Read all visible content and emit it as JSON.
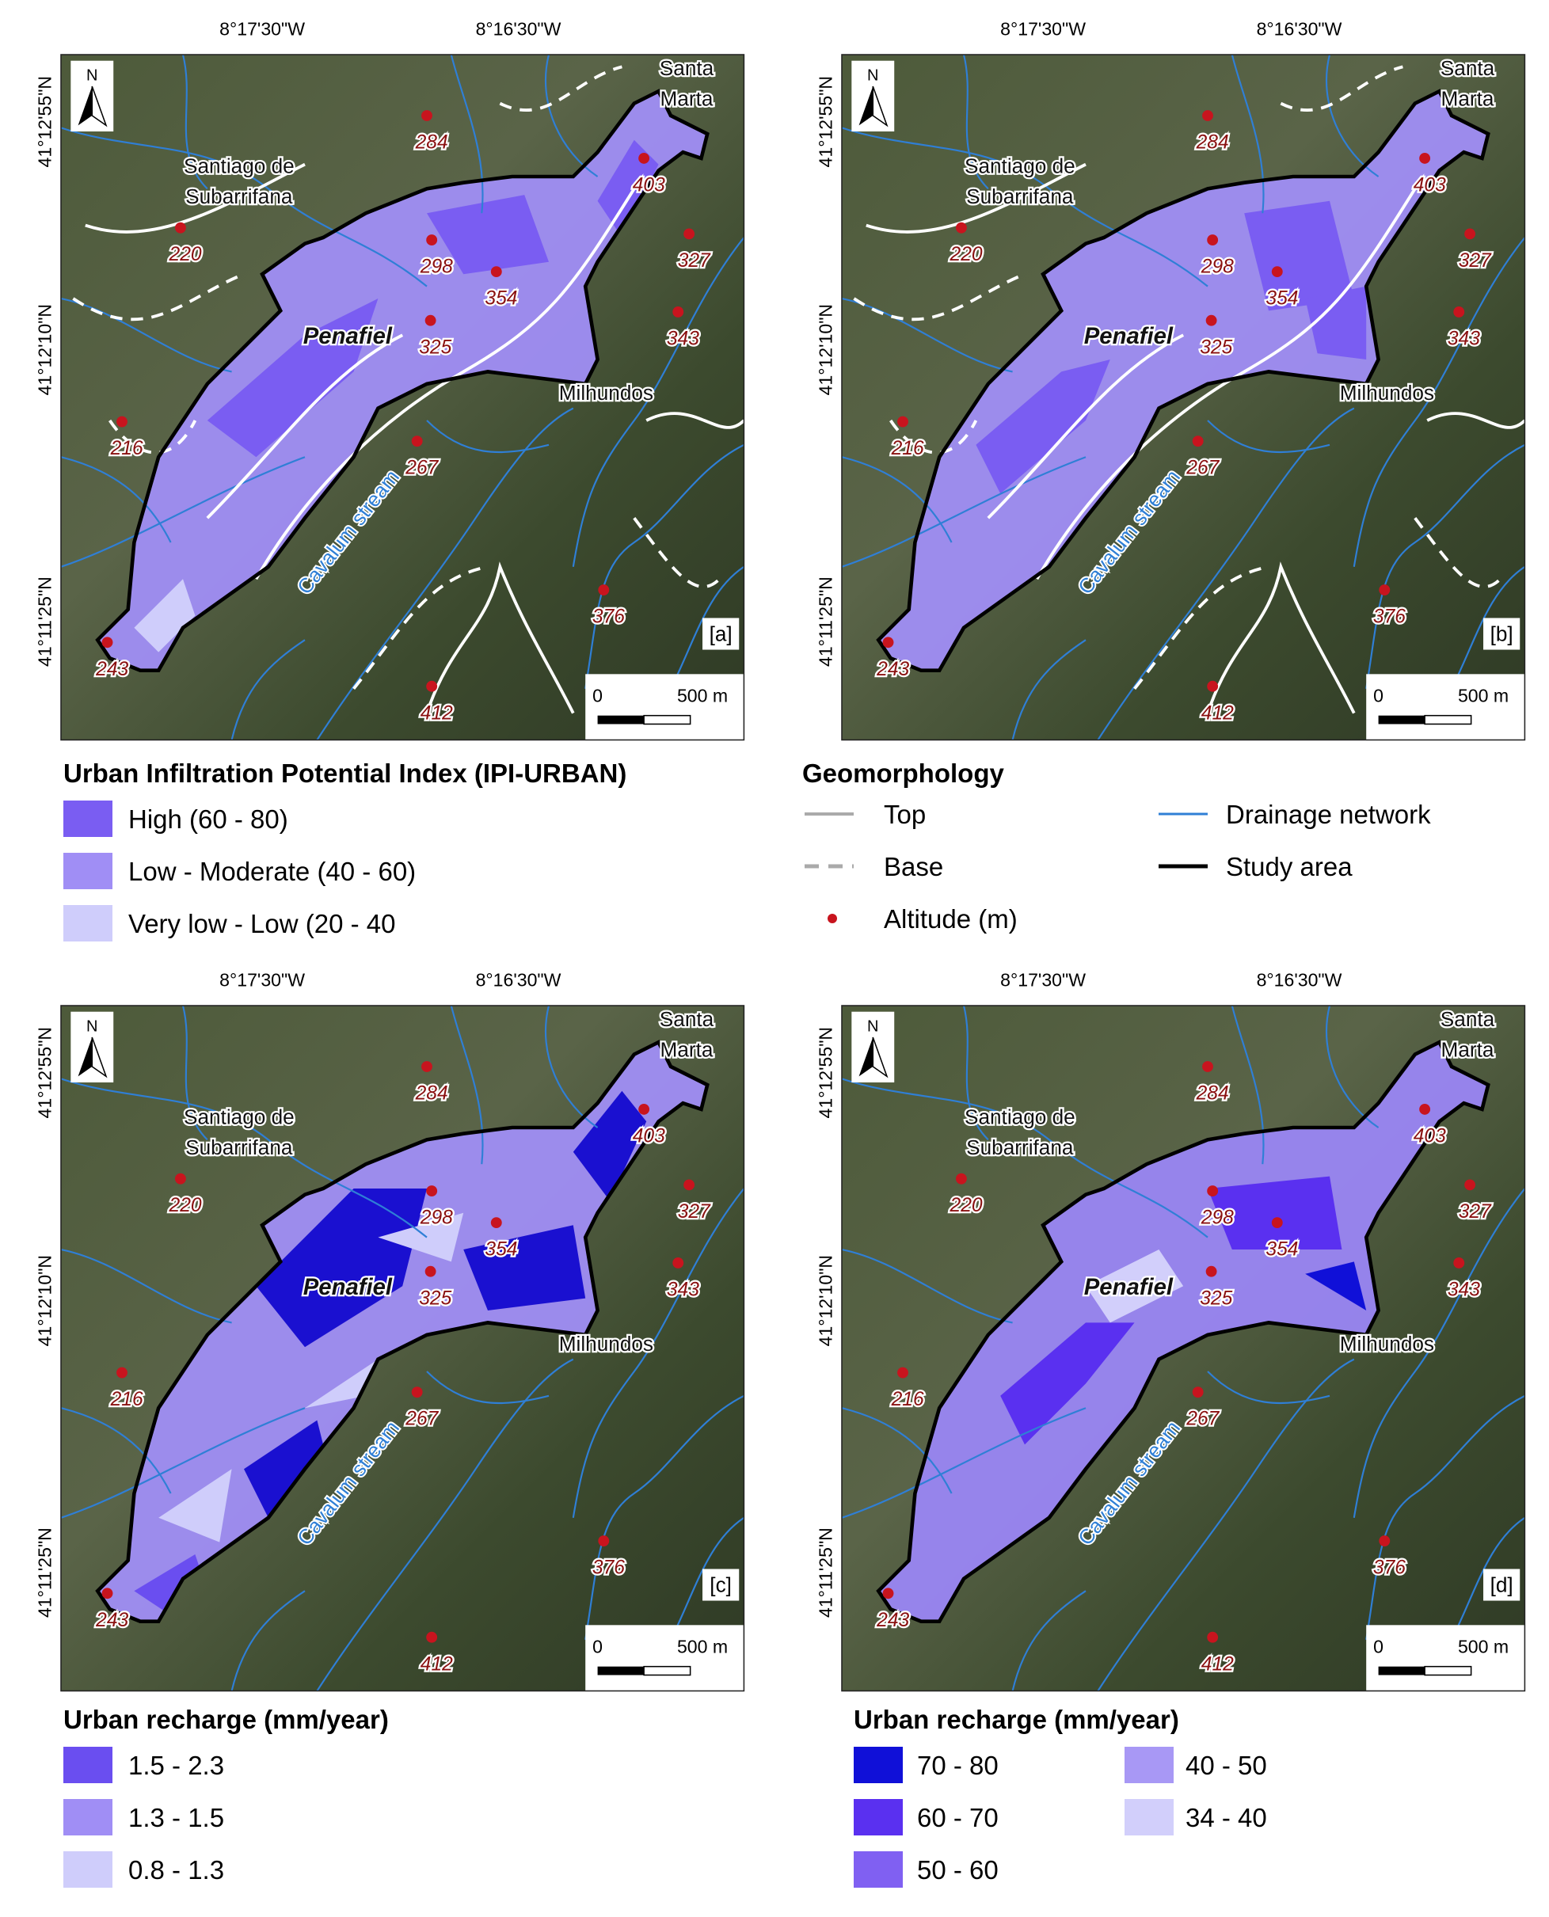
{
  "map": {
    "lon_ticks": [
      "8°17'30\"W",
      "8°16'30\"W"
    ],
    "lat_ticks": [
      "41°12'55\"N",
      "41°12'10\"N",
      "41°11'25\"N"
    ],
    "north": "N",
    "places": [
      {
        "lines": [
          "Santa",
          "Marta"
        ]
      },
      {
        "lines": [
          "Santiago de",
          "Subarrifana"
        ]
      },
      {
        "lines": [
          "Penafiel"
        ]
      },
      {
        "lines": [
          "Milhundos"
        ]
      },
      {
        "lines": [
          "Cavalum stream"
        ]
      }
    ],
    "altitudes": [
      "284",
      "403",
      "220",
      "298",
      "327",
      "354",
      "343",
      "325",
      "216",
      "267",
      "376",
      "243",
      "412"
    ],
    "scale_bar": {
      "zero": "0",
      "distance": "500 m"
    }
  },
  "panels": [
    "[a]",
    "[b]",
    "[c]",
    "[d]"
  ],
  "legends": [
    {
      "title": "Urban Infiltration Potential Index (IPI-URBAN)",
      "items": [
        {
          "label": "High (60 - 80)",
          "color": "#7a5df2"
        },
        {
          "label": "Low - Moderate (40 - 60)",
          "color": "#a08ef5"
        },
        {
          "label": "Very low - Low (20 - 40",
          "color": "#cfcdfb"
        }
      ]
    },
    {
      "title": "Geomorphology",
      "items": [
        {
          "label": "Top"
        },
        {
          "label": "Base"
        },
        {
          "label": "Altitude (m)"
        },
        {
          "label": "Drainage network"
        },
        {
          "label": "Study area"
        }
      ]
    },
    {
      "title": "Urban recharge (mm/year)",
      "items": [
        {
          "label": "1.5 - 2.3",
          "color": "#6a4ef0"
        },
        {
          "label": "1.3 - 1.5",
          "color": "#a08ef5"
        },
        {
          "label": "0.8 - 1.3",
          "color": "#cfcdfb"
        }
      ]
    },
    {
      "title": "Urban recharge (mm/year)",
      "items": [
        {
          "label": "70 - 80",
          "color": "#1010d8"
        },
        {
          "label": "60 - 70",
          "color": "#5a30f0"
        },
        {
          "label": "50 - 60",
          "color": "#8060f2"
        },
        {
          "label": "40 - 50",
          "color": "#a898f5"
        },
        {
          "label": "34 - 40",
          "color": "#d2cffb"
        }
      ]
    }
  ]
}
